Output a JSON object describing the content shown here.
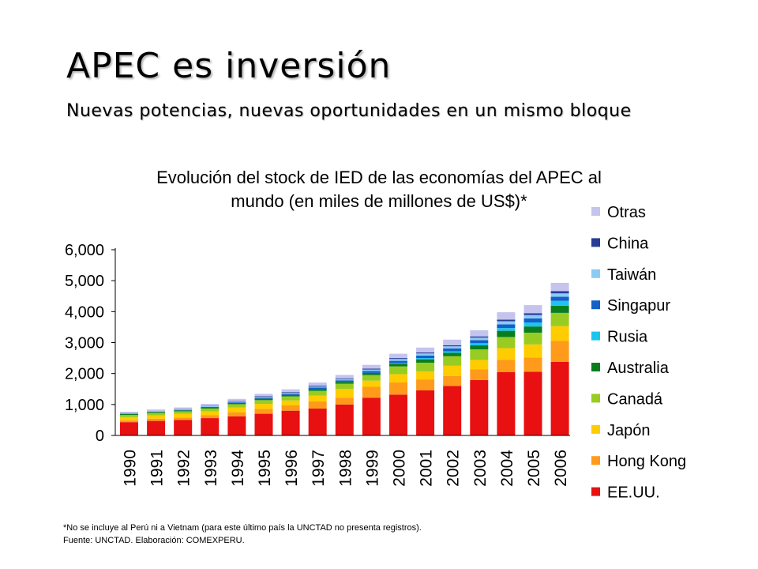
{
  "slide": {
    "title": "APEC es inversión",
    "subtitle": "Nuevas potencias, nuevas oportunidades en un mismo bloque"
  },
  "chart_data": {
    "type": "bar",
    "stacked": true,
    "title_line1": "Evolución del stock de IED de las economías del APEC al",
    "title_line2": "mundo (en miles de millones de US$)*",
    "categories": [
      "1990",
      "1991",
      "1992",
      "1993",
      "1994",
      "1995",
      "1996",
      "1997",
      "1998",
      "1999",
      "2000",
      "2001",
      "2002",
      "2003",
      "2004",
      "2005",
      "2006"
    ],
    "ylim": [
      0,
      6000
    ],
    "yticks": [
      "0",
      "1,000",
      "2,000",
      "3,000",
      "4,000",
      "5,000",
      "6,000"
    ],
    "grid": false,
    "legend_position": "right",
    "series": [
      {
        "name": "EE.UU.",
        "color": "#e81010",
        "values": [
          430,
          470,
          500,
          560,
          620,
          700,
          800,
          870,
          1000,
          1220,
          1320,
          1460,
          1600,
          1790,
          2050,
          2060,
          2380
        ]
      },
      {
        "name": "Hong Kong",
        "color": "#ff9a1a",
        "values": [
          60,
          70,
          80,
          100,
          130,
          160,
          170,
          230,
          220,
          350,
          390,
          350,
          320,
          350,
          390,
          460,
          680
        ]
      },
      {
        "name": "Japón",
        "color": "#ffcc00",
        "values": [
          100,
          110,
          120,
          120,
          150,
          160,
          160,
          190,
          280,
          200,
          270,
          260,
          330,
          300,
          380,
          420,
          470
        ]
      },
      {
        "name": "Canadá",
        "color": "#99cc22",
        "values": [
          70,
          80,
          80,
          90,
          110,
          120,
          130,
          150,
          170,
          180,
          250,
          280,
          310,
          340,
          360,
          380,
          430
        ]
      },
      {
        "name": "Australia",
        "color": "#0a7d1e",
        "values": [
          30,
          30,
          30,
          35,
          40,
          45,
          50,
          55,
          60,
          70,
          90,
          110,
          110,
          130,
          200,
          200,
          230
        ]
      },
      {
        "name": "Rusia",
        "color": "#1ec4f0",
        "values": [
          0,
          0,
          0,
          0,
          0,
          0,
          0,
          0,
          0,
          0,
          20,
          40,
          50,
          70,
          90,
          130,
          160
        ]
      },
      {
        "name": "Singapur",
        "color": "#1260c8",
        "values": [
          10,
          10,
          15,
          20,
          20,
          30,
          40,
          50,
          50,
          60,
          70,
          80,
          90,
          100,
          120,
          130,
          130
        ]
      },
      {
        "name": "Taiwán",
        "color": "#8ccaf5",
        "values": [
          20,
          20,
          25,
          25,
          25,
          30,
          30,
          40,
          40,
          50,
          60,
          70,
          70,
          80,
          100,
          110,
          110
        ]
      },
      {
        "name": "China",
        "color": "#283c96",
        "values": [
          5,
          5,
          5,
          10,
          15,
          20,
          20,
          25,
          25,
          30,
          30,
          30,
          35,
          40,
          50,
          60,
          70
        ]
      },
      {
        "name": "Otras",
        "color": "#c4c4ee",
        "values": [
          40,
          45,
          50,
          60,
          70,
          80,
          90,
          100,
          110,
          120,
          140,
          160,
          180,
          200,
          240,
          260,
          270
        ]
      }
    ]
  },
  "footnote": {
    "line1": "*No se incluye al Perú ni a Vietnam (para este último país la UNCTAD  no presenta registros).",
    "line2": "Fuente: UNCTAD.  Elaboración: COMEXPERU."
  }
}
